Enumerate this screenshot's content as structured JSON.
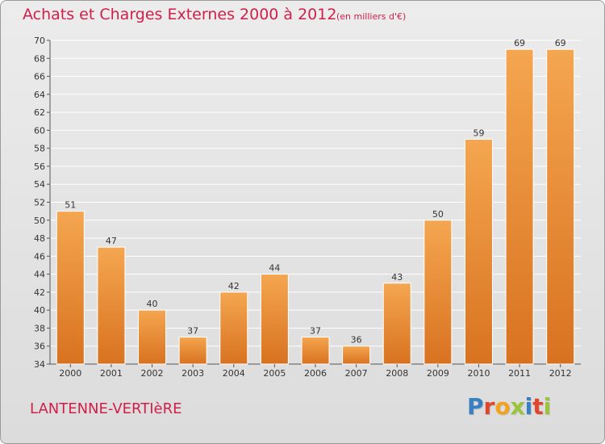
{
  "title": "Achats et Charges Externes 2000 à 2012",
  "unit": "(en milliers d'€)",
  "commune": "LANTENNE-VERTIèRE",
  "logo": {
    "text": "Proxiti",
    "colors": [
      "#3a7fc1",
      "#e0462b",
      "#f2a31b",
      "#9bc43a",
      "#3a7fc1",
      "#e0462b",
      "#9bc43a"
    ]
  },
  "colors": {
    "accent": "#d0204a",
    "bar_top": "#f5a650",
    "bar_bottom": "#d87220",
    "grid": "#ffffff"
  },
  "chart_data": {
    "type": "bar",
    "categories": [
      "2000",
      "2001",
      "2002",
      "2003",
      "2004",
      "2005",
      "2006",
      "2007",
      "2008",
      "2009",
      "2010",
      "2011",
      "2012"
    ],
    "values": [
      51,
      47,
      40,
      37,
      42,
      44,
      37,
      36,
      43,
      50,
      59,
      69,
      69
    ],
    "ylim": [
      34,
      70
    ],
    "yticks": [
      34,
      36,
      38,
      40,
      42,
      44,
      46,
      48,
      50,
      52,
      54,
      56,
      58,
      60,
      62,
      64,
      66,
      68,
      70
    ],
    "grid": true
  }
}
